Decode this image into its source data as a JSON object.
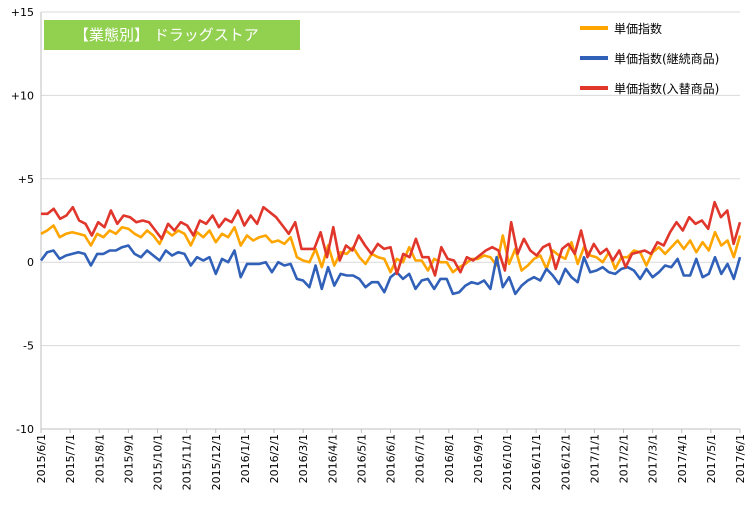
{
  "chart_data": {
    "type": "line",
    "title": "【業態別】 ドラッグストア",
    "ylim": [
      -10,
      15
    ],
    "yticks": [
      -10,
      -5,
      0,
      5,
      10,
      15
    ],
    "ytick_labels": [
      "-10",
      "-5",
      "0",
      "+5",
      "+10",
      "+15"
    ],
    "xtick_labels": [
      "2015/6/1",
      "2015/7/1",
      "2015/8/1",
      "2015/9/1",
      "2015/10/1",
      "2015/11/1",
      "2015/12/1",
      "2016/1/1",
      "2016/2/1",
      "2016/3/1",
      "2016/4/1",
      "2016/5/1",
      "2016/6/1",
      "2016/7/1",
      "2016/8/1",
      "2016/9/1",
      "2016/10/1",
      "2016/11/1",
      "2016/12/1",
      "2017/1/1",
      "2017/2/1",
      "2017/3/1",
      "2017/4/1",
      "2017/5/1",
      "2017/6/1"
    ],
    "grid": "horizontal",
    "legend_position": "top-right",
    "series": [
      {
        "name": "単価指数",
        "color": "#ffa500",
        "values": [
          1.7,
          1.9,
          2.2,
          1.5,
          1.7,
          1.8,
          1.7,
          1.6,
          1.0,
          1.7,
          1.5,
          1.9,
          1.7,
          2.1,
          2.0,
          1.7,
          1.5,
          1.9,
          1.6,
          1.1,
          1.9,
          1.6,
          1.9,
          1.7,
          1.0,
          1.8,
          1.5,
          1.9,
          1.2,
          1.7,
          1.5,
          2.1,
          1.0,
          1.6,
          1.3,
          1.5,
          1.6,
          1.2,
          1.3,
          1.1,
          1.5,
          0.3,
          0.1,
          0.0,
          0.8,
          -0.3,
          1.0,
          -0.2,
          0.6,
          0.5,
          0.9,
          0.3,
          -0.1,
          0.5,
          0.3,
          0.2,
          -0.6,
          0.2,
          0.0,
          0.9,
          0.1,
          0.1,
          -0.5,
          0.2,
          0.0,
          0.0,
          -0.6,
          -0.3,
          -0.1,
          0.2,
          0.2,
          0.4,
          0.3,
          -0.2,
          1.6,
          -0.1,
          0.8,
          -0.5,
          -0.2,
          0.2,
          0.4,
          -0.4,
          0.7,
          0.4,
          0.2,
          1.2,
          -0.1,
          0.9,
          0.4,
          0.3,
          0.0,
          0.6,
          -0.4,
          0.3,
          0.3,
          0.7,
          0.6,
          -0.2,
          0.6,
          0.9,
          0.5,
          0.9,
          1.3,
          0.8,
          1.3,
          0.6,
          1.2,
          0.7,
          1.8,
          1.0,
          1.3,
          0.3,
          1.6
        ]
      },
      {
        "name": "単価指数(継続商品)",
        "color": "#3060b8",
        "values": [
          0.1,
          0.6,
          0.7,
          0.2,
          0.4,
          0.5,
          0.6,
          0.5,
          -0.2,
          0.5,
          0.5,
          0.7,
          0.7,
          0.9,
          1.0,
          0.5,
          0.3,
          0.7,
          0.4,
          0.1,
          0.7,
          0.4,
          0.6,
          0.5,
          -0.2,
          0.3,
          0.1,
          0.3,
          -0.7,
          0.2,
          0.0,
          0.7,
          -0.9,
          -0.1,
          -0.1,
          -0.1,
          0.0,
          -0.6,
          0.0,
          -0.2,
          -0.1,
          -1.0,
          -1.1,
          -1.5,
          -0.2,
          -1.6,
          -0.3,
          -1.4,
          -0.7,
          -0.8,
          -0.8,
          -1.0,
          -1.5,
          -1.2,
          -1.2,
          -1.8,
          -0.9,
          -0.6,
          -1.0,
          -0.7,
          -1.6,
          -1.1,
          -1.0,
          -1.6,
          -1.0,
          -1.0,
          -1.9,
          -1.8,
          -1.4,
          -1.2,
          -1.3,
          -1.1,
          -1.6,
          0.3,
          -1.5,
          -0.9,
          -1.9,
          -1.4,
          -1.1,
          -0.9,
          -1.1,
          -0.4,
          -0.8,
          -1.3,
          -0.4,
          -0.9,
          -1.2,
          0.3,
          -0.6,
          -0.5,
          -0.3,
          -0.6,
          -0.7,
          -0.4,
          -0.3,
          -0.5,
          -1.0,
          -0.4,
          -0.9,
          -0.6,
          -0.2,
          -0.3,
          0.2,
          -0.8,
          -0.8,
          0.2,
          -0.9,
          -0.7,
          0.3,
          -0.7,
          -0.1,
          -1.0,
          0.3
        ]
      },
      {
        "name": "単価指数(入替商品)",
        "color": "#e0362c",
        "values": [
          2.9,
          2.9,
          3.2,
          2.6,
          2.8,
          3.3,
          2.5,
          2.3,
          1.6,
          2.4,
          2.1,
          3.1,
          2.3,
          2.8,
          2.7,
          2.4,
          2.5,
          2.4,
          1.9,
          1.4,
          2.3,
          1.9,
          2.4,
          2.2,
          1.6,
          2.5,
          2.3,
          2.8,
          2.1,
          2.6,
          2.4,
          3.1,
          2.2,
          2.8,
          2.3,
          3.3,
          3.0,
          2.7,
          2.2,
          1.7,
          2.4,
          0.8,
          0.8,
          0.8,
          1.8,
          0.3,
          2.1,
          0.1,
          1.0,
          0.7,
          1.6,
          1.0,
          0.5,
          1.1,
          0.8,
          0.9,
          -0.7,
          0.5,
          0.3,
          1.4,
          0.3,
          0.3,
          -0.8,
          0.9,
          0.2,
          0.1,
          -0.6,
          0.3,
          0.1,
          0.4,
          0.7,
          0.9,
          0.7,
          -0.5,
          2.4,
          0.5,
          1.4,
          0.7,
          0.4,
          0.9,
          1.1,
          -0.4,
          0.8,
          1.1,
          0.5,
          1.9,
          0.3,
          1.1,
          0.5,
          0.8,
          0.1,
          0.7,
          -0.3,
          0.5,
          0.6,
          0.7,
          0.5,
          1.2,
          1.0,
          1.8,
          2.4,
          1.9,
          2.7,
          2.3,
          2.5,
          2.0,
          3.6,
          2.7,
          3.1,
          1.1,
          2.4
        ]
      }
    ]
  }
}
